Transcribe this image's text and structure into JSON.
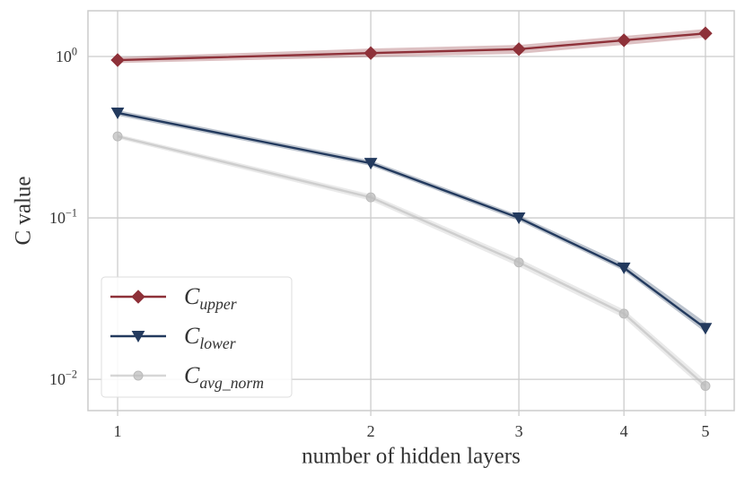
{
  "chart_data": {
    "type": "line",
    "xlabel": "number of hidden layers",
    "ylabel": "C value",
    "x": [
      1,
      2,
      3,
      4,
      5
    ],
    "xscale": "log",
    "yscale": "log",
    "xlim": [
      0.922,
      5.41
    ],
    "ylim": [
      0.0064,
      1.92
    ],
    "xticks": [
      1,
      2,
      3,
      4,
      5
    ],
    "yticks": [
      {
        "value": 0.01,
        "label": "10^−2"
      },
      {
        "value": 0.1,
        "label": "10^−1"
      },
      {
        "value": 1,
        "label": "10^0"
      }
    ],
    "grid": true,
    "legend": "lower left",
    "series": [
      {
        "name": "C_upper",
        "color": "#8e3139",
        "marker": "diamond",
        "values": [
          0.95,
          1.05,
          1.11,
          1.26,
          1.39
        ],
        "band_lower": [
          0.91,
          0.99,
          1.04,
          1.18,
          1.31
        ],
        "band_upper": [
          0.99,
          1.12,
          1.18,
          1.34,
          1.48
        ]
      },
      {
        "name": "C_lower",
        "color": "#233a5e",
        "marker": "triangle-down",
        "values": [
          0.447,
          0.218,
          0.1,
          0.049,
          0.0207
        ],
        "band_lower": [
          0.43,
          0.21,
          0.096,
          0.047,
          0.0195
        ],
        "band_upper": [
          0.465,
          0.227,
          0.104,
          0.052,
          0.0225
        ]
      },
      {
        "name": "C_avg_norm",
        "color": "#bbbbbb",
        "marker": "circle",
        "values": [
          0.32,
          0.134,
          0.053,
          0.0255,
          0.0091
        ],
        "band_lower": [
          0.31,
          0.128,
          0.05,
          0.024,
          0.0085
        ],
        "band_upper": [
          0.33,
          0.14,
          0.056,
          0.027,
          0.0098
        ]
      }
    ]
  }
}
